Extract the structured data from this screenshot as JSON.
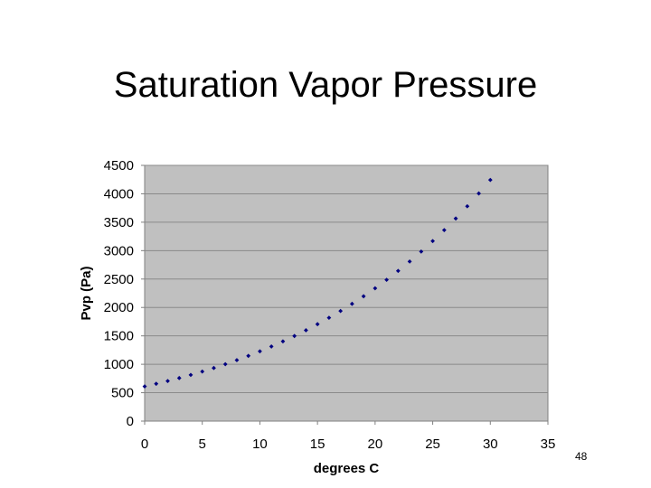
{
  "slide": {
    "title": "Saturation Vapor Pressure",
    "page_number": "48"
  },
  "colors": {
    "plot_background": "#c0c0c0",
    "gridline": "#8a8a8a",
    "marker": "#000080",
    "axis": "#808080"
  },
  "chart_data": {
    "type": "scatter",
    "title": "",
    "xlabel": "degrees C",
    "ylabel": "Pvp (Pa)",
    "xlim": [
      0,
      35
    ],
    "ylim": [
      0,
      4500
    ],
    "xticks": [
      0,
      5,
      10,
      15,
      20,
      25,
      30,
      35
    ],
    "yticks": [
      0,
      500,
      1000,
      1500,
      2000,
      2500,
      3000,
      3500,
      4000,
      4500
    ],
    "grid": "horizontal",
    "legend": "none",
    "marker": "small diamond",
    "series": [
      {
        "x": [
          0,
          1,
          2,
          3,
          4,
          5,
          6,
          7,
          8,
          9,
          10,
          11,
          12,
          13,
          14,
          15,
          16,
          17,
          18,
          19,
          20,
          21,
          22,
          23,
          24,
          25,
          26,
          27,
          28,
          29,
          30
        ],
        "y": [
          611,
          657,
          706,
          758,
          813,
          872,
          935,
          1002,
          1073,
          1148,
          1228,
          1313,
          1403,
          1498,
          1599,
          1706,
          1819,
          1938,
          2064,
          2197,
          2338,
          2487,
          2644,
          2809,
          2984,
          3168,
          3361,
          3565,
          3780,
          4006,
          4243
        ]
      }
    ]
  }
}
